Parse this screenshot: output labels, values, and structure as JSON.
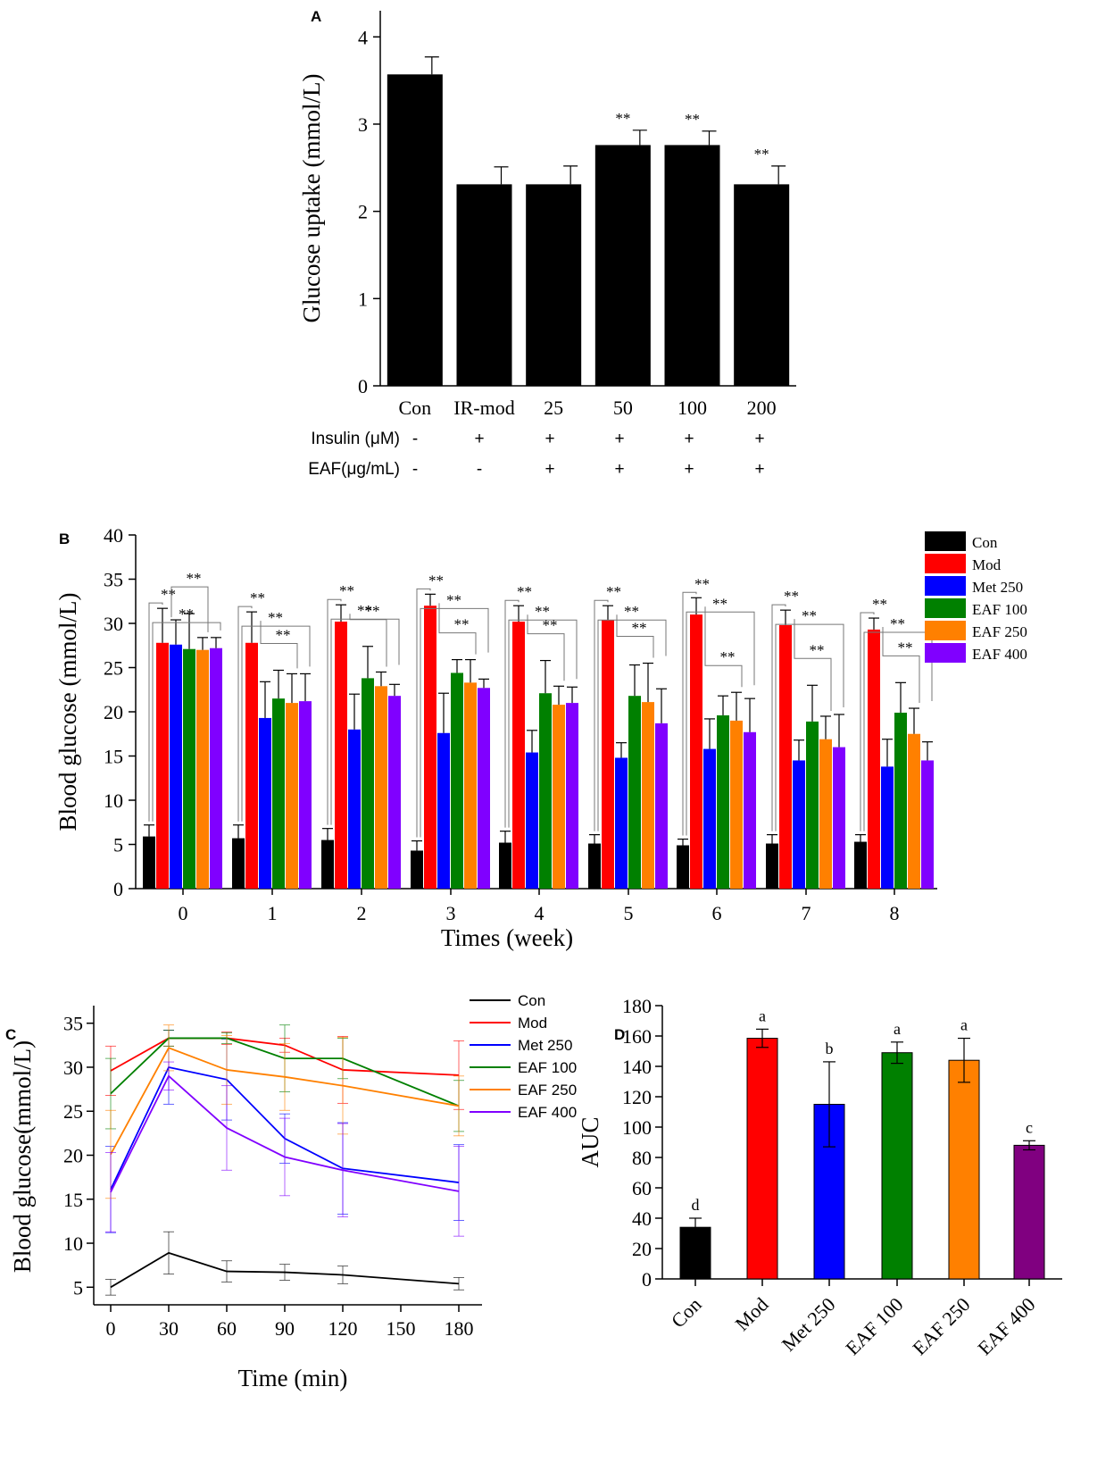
{
  "figure": "multi-panel",
  "chart_data": [
    {
      "panel": "A",
      "type": "bar",
      "ylabel": "Glucose uptake (mmol/L)",
      "ylim": [
        0,
        4.3
      ],
      "yticks": [
        "0",
        "1",
        "2",
        "3",
        "4"
      ],
      "categories": [
        "Con",
        "IR-mod",
        "25",
        "50",
        "100",
        "200"
      ],
      "values": [
        3.57,
        2.31,
        2.31,
        2.76,
        2.76,
        2.31
      ],
      "errors": [
        0.2,
        0.2,
        0.21,
        0.17,
        0.16,
        0.21
      ],
      "significance": [
        "",
        "",
        "",
        "**",
        "**",
        "**"
      ],
      "rows": [
        {
          "label": "Insulin (μM)",
          "marks": [
            "-",
            "+",
            "+",
            "+",
            "+",
            "+"
          ]
        },
        {
          "label": "EAF(μg/mL)",
          "marks": [
            "-",
            "-",
            "+",
            "+",
            "+",
            "+"
          ]
        }
      ],
      "color": "#000000"
    },
    {
      "panel": "B",
      "type": "bar",
      "xlabel": "Times (week)",
      "ylabel": "Blood glucose (mmol/L)",
      "ylim": [
        0,
        40
      ],
      "yticks": [
        "0",
        "5",
        "10",
        "15",
        "20",
        "25",
        "30",
        "35",
        "40"
      ],
      "categories": [
        "0",
        "1",
        "2",
        "3",
        "4",
        "5",
        "6",
        "7",
        "8"
      ],
      "series": [
        {
          "name": "Con",
          "color": "#000000",
          "values": [
            5.9,
            5.7,
            5.5,
            4.3,
            5.2,
            5.1,
            4.9,
            5.1,
            5.3
          ],
          "errors": [
            1.3,
            1.5,
            1.3,
            1.1,
            1.3,
            1.0,
            0.7,
            1.0,
            0.8
          ]
        },
        {
          "name": "Mod",
          "color": "#ff0000",
          "values": [
            27.8,
            27.8,
            30.2,
            32.0,
            30.2,
            30.4,
            31.0,
            29.8,
            29.3
          ],
          "errors": [
            3.9,
            3.5,
            1.9,
            1.3,
            1.8,
            1.6,
            1.9,
            1.7,
            1.3
          ]
        },
        {
          "name": "Met 250",
          "color": "#0000ff",
          "values": [
            27.6,
            19.3,
            18.0,
            17.6,
            15.4,
            14.8,
            15.8,
            14.5,
            13.8
          ],
          "errors": [
            2.8,
            4.1,
            4.0,
            4.5,
            2.5,
            1.7,
            3.4,
            2.3,
            3.1
          ]
        },
        {
          "name": "EAF 100",
          "color": "#008000",
          "values": [
            27.1,
            21.5,
            23.8,
            24.4,
            22.1,
            21.8,
            19.6,
            18.9,
            19.9
          ],
          "errors": [
            4.0,
            3.2,
            3.6,
            1.5,
            3.7,
            3.5,
            2.2,
            4.1,
            3.4
          ]
        },
        {
          "name": "EAF 250",
          "color": "#ff8000",
          "values": [
            27.0,
            21.0,
            22.9,
            23.3,
            20.8,
            21.1,
            19.0,
            16.9,
            17.5
          ],
          "errors": [
            1.4,
            3.3,
            1.6,
            2.6,
            2.1,
            4.4,
            3.2,
            2.6,
            2.9
          ]
        },
        {
          "name": "EAF 400",
          "color": "#8000ff",
          "values": [
            27.2,
            21.2,
            21.8,
            22.7,
            21.0,
            18.7,
            17.7,
            16.0,
            14.5
          ],
          "errors": [
            1.2,
            3.1,
            1.3,
            1.0,
            1.8,
            3.9,
            3.8,
            3.7,
            2.1
          ]
        }
      ],
      "significance_label": "**",
      "legend_position": "top-right"
    },
    {
      "panel": "C",
      "type": "line",
      "xlabel": "Time (min)",
      "ylabel": "Blood glucose(mmol/L)",
      "x": [
        0,
        30,
        60,
        90,
        120,
        180
      ],
      "xlim": [
        -10,
        190
      ],
      "ylim": [
        3,
        37
      ],
      "xticks": [
        "0",
        "30",
        "60",
        "90",
        "120",
        "150",
        "180"
      ],
      "yticks": [
        "5",
        "10",
        "15",
        "20",
        "25",
        "30",
        "35"
      ],
      "series": [
        {
          "name": "Con",
          "color": "#000000",
          "values": [
            5.0,
            8.9,
            6.8,
            6.7,
            6.4,
            5.4
          ],
          "errors": [
            0.9,
            2.4,
            1.2,
            0.9,
            1.0,
            0.7
          ]
        },
        {
          "name": "Mod",
          "color": "#ff0000",
          "values": [
            29.6,
            33.3,
            33.3,
            32.5,
            29.7,
            29.1
          ],
          "errors": [
            2.8,
            0.9,
            0.7,
            0.8,
            3.8,
            3.9
          ]
        },
        {
          "name": "Met 250",
          "color": "#0000ff",
          "values": [
            16.1,
            30.0,
            28.6,
            21.9,
            18.5,
            16.9
          ],
          "errors": [
            4.9,
            4.2,
            4.6,
            2.8,
            5.2,
            4.3
          ]
        },
        {
          "name": "EAF 100",
          "color": "#008000",
          "values": [
            27.0,
            33.3,
            33.3,
            31.0,
            31.0,
            25.6
          ],
          "errors": [
            4.0,
            0.9,
            0.6,
            3.8,
            2.3,
            2.9
          ]
        },
        {
          "name": "EAF 250",
          "color": "#ff8000",
          "values": [
            20.1,
            32.2,
            29.7,
            28.9,
            27.9,
            25.6
          ],
          "errors": [
            5.0,
            2.6,
            3.9,
            3.8,
            5.5,
            3.4
          ]
        },
        {
          "name": "EAF 400",
          "color": "#8000ff",
          "values": [
            15.8,
            29.0,
            23.1,
            19.8,
            18.3,
            15.9
          ],
          "errors": [
            4.5,
            1.6,
            4.8,
            4.4,
            5.3,
            5.1
          ]
        }
      ],
      "legend_position": "top-right"
    },
    {
      "panel": "D",
      "type": "bar",
      "ylabel": "AUC",
      "ylim": [
        0,
        180
      ],
      "yticks": [
        "0",
        "20",
        "40",
        "60",
        "80",
        "100",
        "120",
        "140",
        "160",
        "180"
      ],
      "categories": [
        "Con",
        "Mod",
        "Met 250",
        "EAF 100",
        "EAF 250",
        "EAF 400"
      ],
      "values": [
        34,
        158.5,
        115,
        149,
        144,
        88
      ],
      "errors": [
        6,
        6,
        28,
        7,
        14.5,
        3
      ],
      "letters": [
        "d",
        "a",
        "b",
        "a",
        "a",
        "c"
      ],
      "colors": [
        "#000000",
        "#ff0000",
        "#0000ff",
        "#008000",
        "#ff8000",
        "#800080"
      ]
    }
  ]
}
